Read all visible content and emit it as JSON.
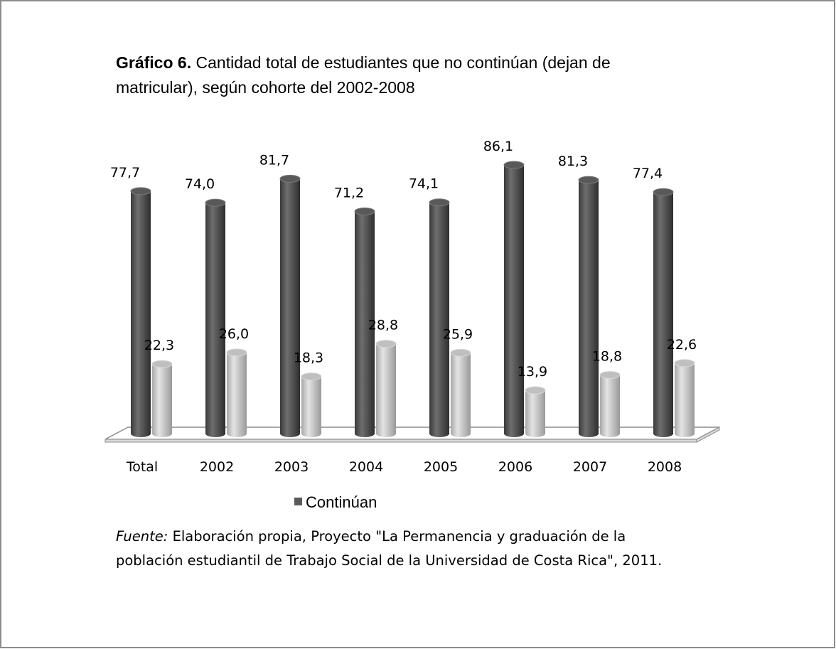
{
  "chart_data": {
    "type": "bar3d",
    "title_label": "Gráfico 6.",
    "title": [
      "Cantidad total de estudiantes que no continúan (dejan de",
      "matricular), según cohorte del 2002-2008"
    ],
    "categories": [
      "Total",
      "2002",
      "2003",
      "2004",
      "2005",
      "2006",
      "2007",
      "2008"
    ],
    "series": [
      {
        "name": "Continúan",
        "color": "#595959",
        "values": [
          77.7,
          74.0,
          81.7,
          71.2,
          74.1,
          86.1,
          81.3,
          77.4
        ],
        "value_labels": [
          "77,7",
          "74,0",
          "81,7",
          "71,2",
          "74,1",
          "86,1",
          "81,3",
          "77,4"
        ]
      },
      {
        "color": "#bfbfbf",
        "values": [
          22.3,
          26.0,
          18.3,
          28.8,
          25.9,
          13.9,
          18.8,
          22.6
        ],
        "value_labels": [
          "22,3",
          "26,0",
          "18,3",
          "28,8",
          "25,9",
          "13,9",
          "18,8",
          "22,6"
        ]
      }
    ],
    "ylim": [
      0,
      100
    ],
    "source_label": "Fuente:",
    "source": [
      "Elaboración propia, Proyecto \"La Permanencia y graduación de la",
      "población estudiantil de Trabajo Social de la Universidad de Costa Rica\", 2011."
    ]
  }
}
